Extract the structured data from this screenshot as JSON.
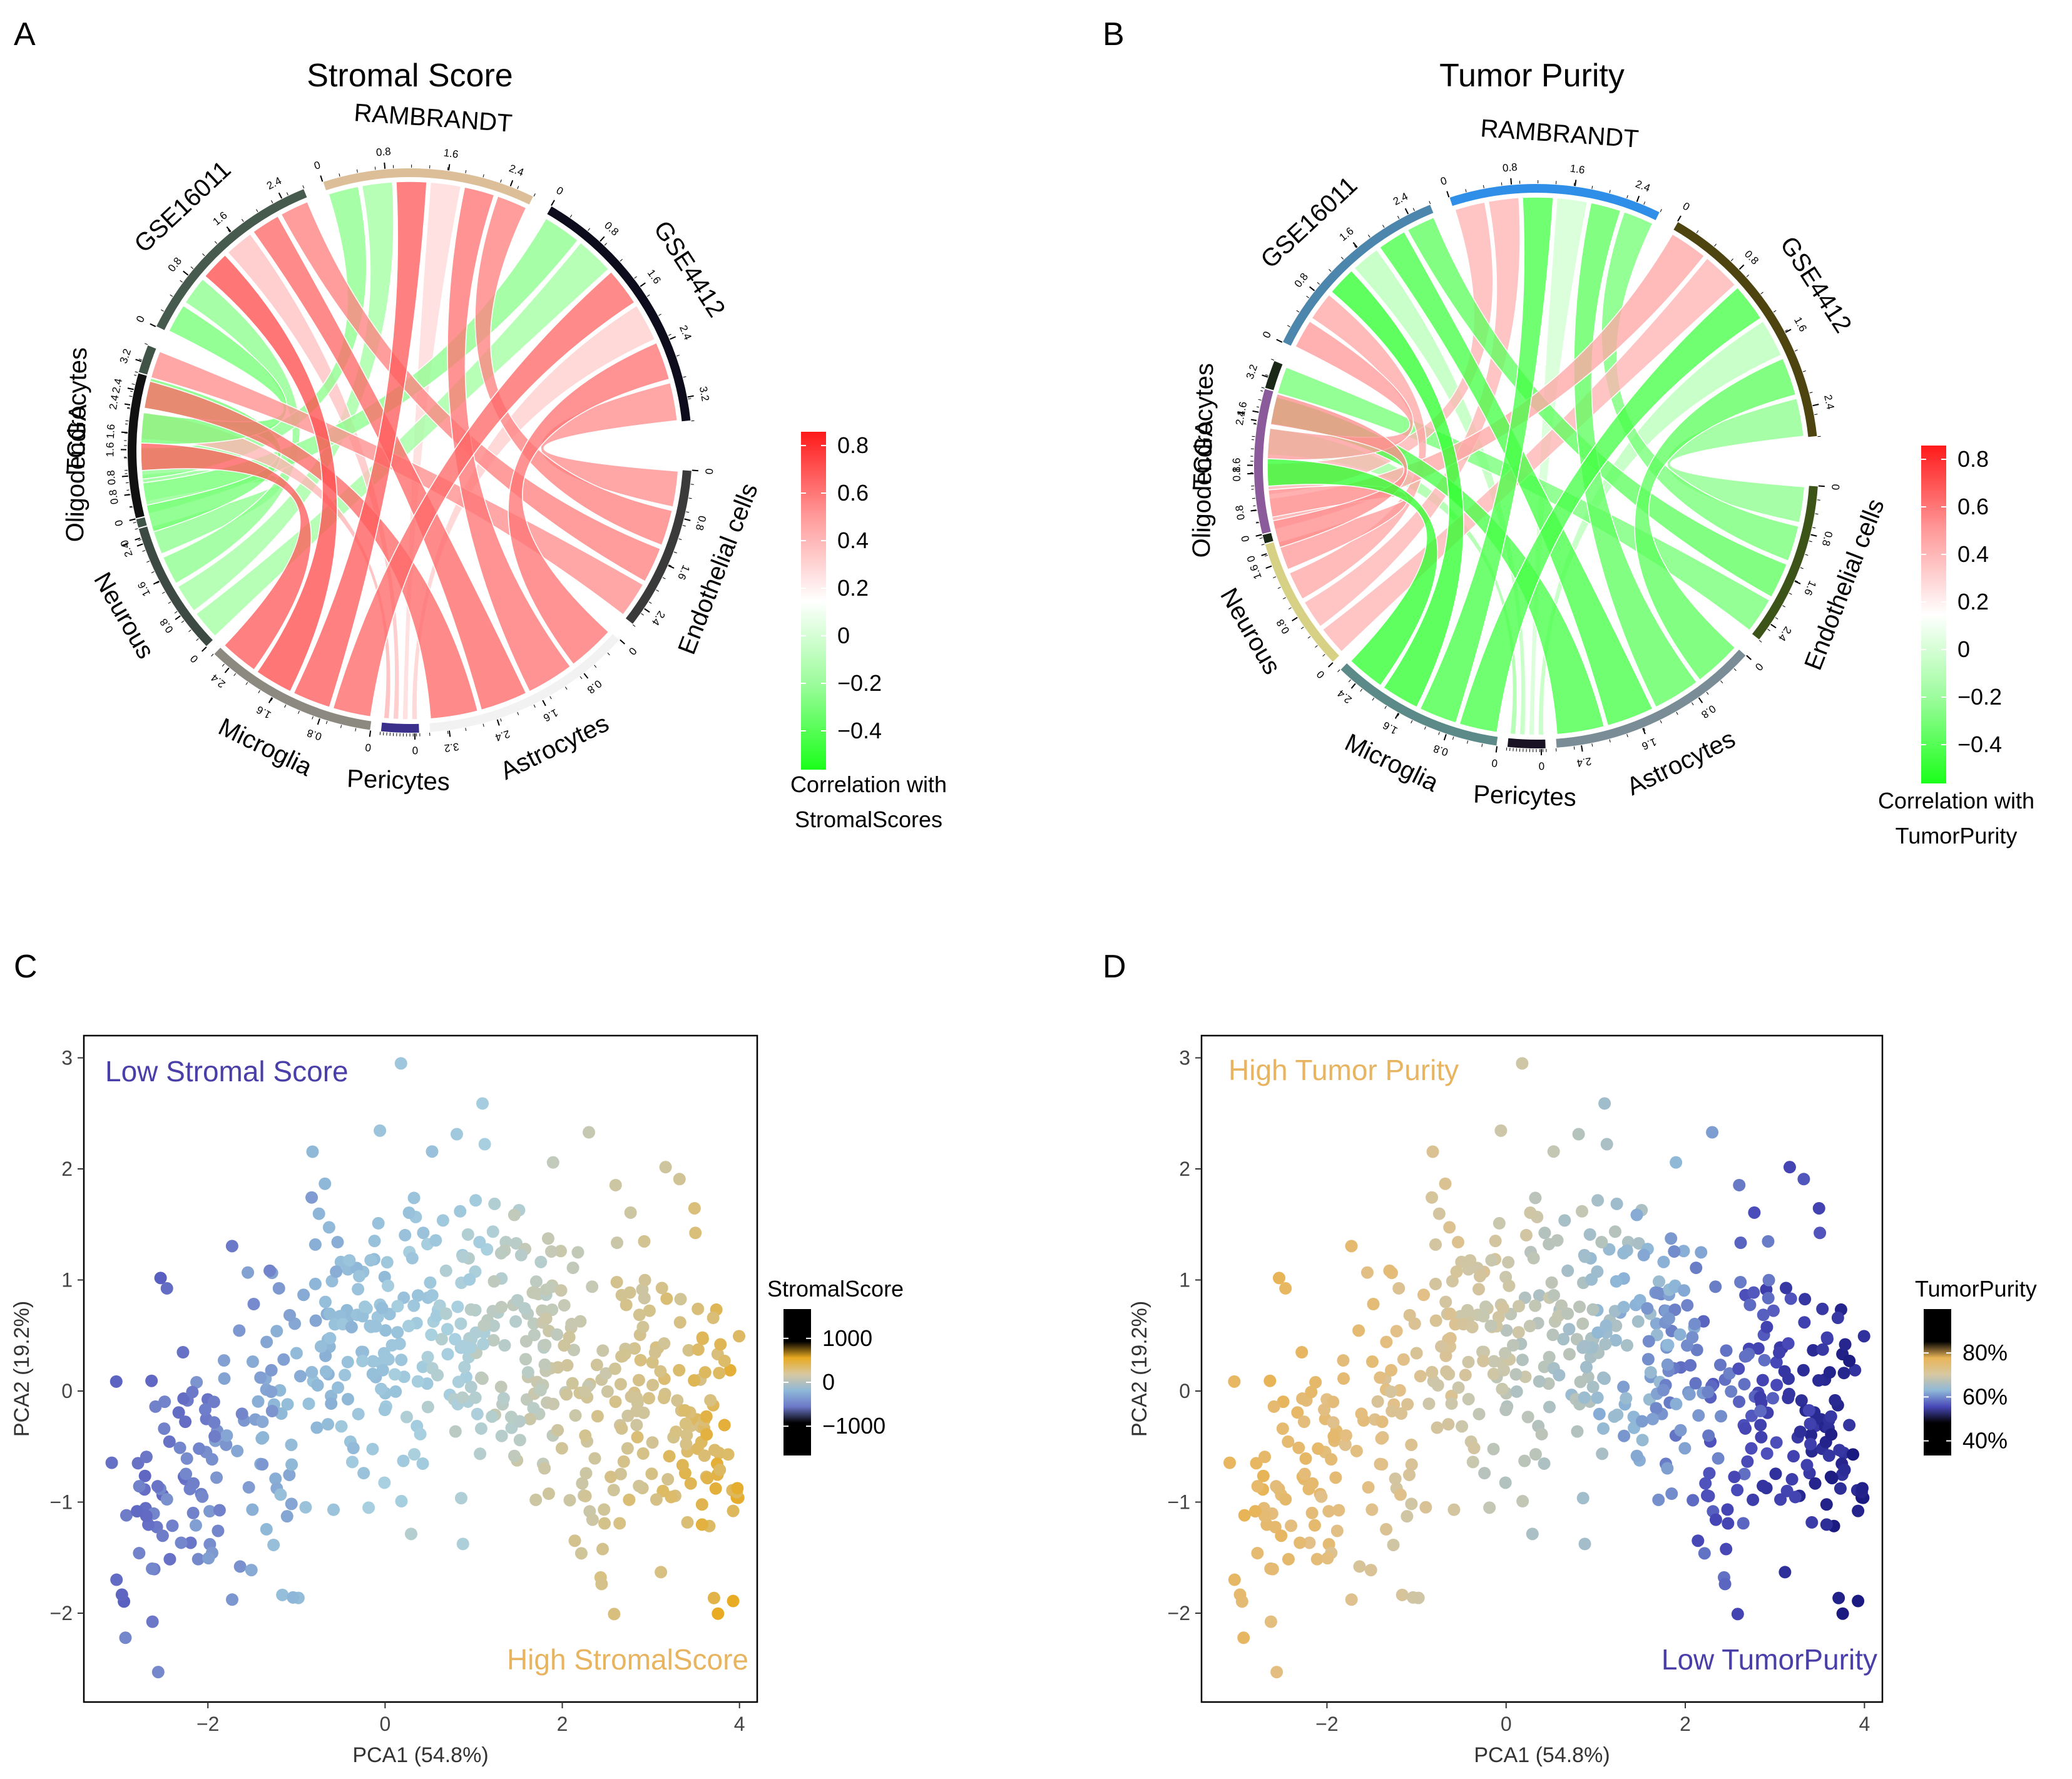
{
  "panels": {
    "A": {
      "letter": "A",
      "title": "Stromal Score",
      "segments": [
        {
          "name": "TCGA",
          "ticks": [
            "0",
            "0.8",
            "1.6",
            "2.4",
            "3.2"
          ],
          "color": "#3f5446"
        },
        {
          "name": "GSE16011",
          "ticks": [
            "0",
            "0.8",
            "1.6",
            "2.4"
          ],
          "color": "#465a4d"
        },
        {
          "name": "RAMBRANDT",
          "ticks": [
            "0",
            "0.8",
            "1.6",
            "2.4"
          ],
          "color": "#dcbf98"
        },
        {
          "name": "GSE4412",
          "ticks": [
            "0",
            "0.8",
            "1.6",
            "2.4",
            "3.2"
          ],
          "color": "#0c0c1c"
        },
        {
          "name": "Endothelial cells",
          "ticks": [
            "0",
            "0.8",
            "1.6",
            "2.4"
          ],
          "color": "#3a3a3a"
        },
        {
          "name": "Astrocytes",
          "ticks": [
            "0",
            "0.8",
            "1.6",
            "2.4",
            "3.2"
          ],
          "color": "#f2f2f2"
        },
        {
          "name": "Pericytes",
          "ticks": [
            "0"
          ],
          "color": "#3a2f8a"
        },
        {
          "name": "Microglia",
          "ticks": [
            "0",
            "0.8",
            "1.6",
            "2.4"
          ],
          "color": "#8c8a80"
        },
        {
          "name": "Neurous",
          "ticks": [
            "0",
            "0.8",
            "1.6",
            "2.4"
          ],
          "color": "#3d4a44"
        },
        {
          "name": "Oligodendrocytes",
          "ticks": [
            "0",
            "0.8",
            "1.6",
            "2.4"
          ],
          "color": "#111111"
        }
      ],
      "legend": {
        "title_line1": "Correlation with",
        "title_line2": "StromalScores",
        "ticks": [
          "0.8",
          "0.6",
          "0.4",
          "0.2",
          "0",
          "−0.2",
          "−0.4"
        ],
        "colors": [
          "#ff1a1a",
          "#ff9a9a",
          "#ffffff",
          "#9afc9a",
          "#1aff1a"
        ]
      }
    },
    "B": {
      "letter": "B",
      "title": "Tumor Purity",
      "segments": [
        {
          "name": "TCGA",
          "ticks": [
            "0",
            "0.8",
            "1.6",
            "2.4",
            "3.2"
          ],
          "color": "#1a2616"
        },
        {
          "name": "GSE16011",
          "ticks": [
            "0",
            "0.8",
            "1.6",
            "2.4"
          ],
          "color": "#4c86ad"
        },
        {
          "name": "RAMBRANDT",
          "ticks": [
            "0",
            "0.8",
            "1.6",
            "2.4"
          ],
          "color": "#2f8fe8"
        },
        {
          "name": "GSE4412",
          "ticks": [
            "0",
            "0.8",
            "1.6",
            "2.4"
          ],
          "color": "#4d4410"
        },
        {
          "name": "Endothelial cells",
          "ticks": [
            "0",
            "0.8",
            "1.6",
            "2.4"
          ],
          "color": "#3d5418"
        },
        {
          "name": "Astrocytes",
          "ticks": [
            "0",
            "0.8",
            "1.6",
            "2.4"
          ],
          "color": "#7a8d96"
        },
        {
          "name": "Pericytes",
          "ticks": [
            "0"
          ],
          "color": "#181224"
        },
        {
          "name": "Microglia",
          "ticks": [
            "0",
            "0.8",
            "1.6",
            "2.4"
          ],
          "color": "#5c8a88"
        },
        {
          "name": "Neurous",
          "ticks": [
            "0",
            "0.8",
            "1.6"
          ],
          "color": "#d6d184"
        },
        {
          "name": "Oligodendrocytes",
          "ticks": [
            "0",
            "0.8",
            "1.6"
          ],
          "color": "#8a5a9a"
        }
      ],
      "legend": {
        "title_line1": "Correlation with",
        "title_line2": "TumorPurity",
        "ticks": [
          "0.8",
          "0.6",
          "0.4",
          "0.2",
          "0",
          "−0.2",
          "−0.4"
        ],
        "colors": [
          "#ff1a1a",
          "#ff9a9a",
          "#ffffff",
          "#9afc9a",
          "#1aff1a"
        ]
      }
    },
    "C": {
      "letter": "C",
      "corner_top_left": "Low Stromal Score",
      "corner_bottom_right": "High StromalScore",
      "corner_tl_color": "#4a3fa8",
      "corner_br_color": "#e8b460",
      "legend_title": "StromalScore",
      "legend_ticks": [
        "1000",
        "0",
        "−1000"
      ]
    },
    "D": {
      "letter": "D",
      "corner_top_left": "High Tumor Purity",
      "corner_bottom_right": "Low TumorPurity",
      "corner_tl_color": "#e8b460",
      "corner_br_color": "#4a3fa8",
      "legend_title": "TumorPurity",
      "legend_ticks": [
        "80%",
        "60%",
        "40%"
      ]
    }
  },
  "chart_data": [
    {
      "type": "chord",
      "panel": "A",
      "title": "Stromal Score",
      "left_sectors": [
        "TCGA",
        "GSE16011",
        "RAMBRANDT",
        "GSE4412"
      ],
      "right_sectors": [
        "Endothelial cells",
        "Astrocytes",
        "Pericytes",
        "Microglia",
        "Neurous",
        "Oligodendrocytes"
      ],
      "color_scale": {
        "min": -0.5,
        "max": 0.85,
        "label": "Correlation with StromalScores"
      },
      "links": [
        {
          "from": "TCGA",
          "to": "Oligodendrocytes",
          "value": -0.3
        },
        {
          "from": "TCGA",
          "to": "Neurous",
          "value": -0.25
        },
        {
          "from": "TCGA",
          "to": "Microglia",
          "value": 0.65
        },
        {
          "from": "TCGA",
          "to": "Pericytes",
          "value": 0.3
        },
        {
          "from": "TCGA",
          "to": "Astrocytes",
          "value": 0.6
        },
        {
          "from": "TCGA",
          "to": "Endothelial cells",
          "value": 0.45
        },
        {
          "from": "GSE16011",
          "to": "Oligodendrocytes",
          "value": -0.3
        },
        {
          "from": "GSE16011",
          "to": "Neurous",
          "value": -0.25
        },
        {
          "from": "GSE16011",
          "to": "Microglia",
          "value": 0.7
        },
        {
          "from": "GSE16011",
          "to": "Pericytes",
          "value": 0.25
        },
        {
          "from": "GSE16011",
          "to": "Astrocytes",
          "value": 0.6
        },
        {
          "from": "GSE16011",
          "to": "Endothelial cells",
          "value": 0.5
        },
        {
          "from": "RAMBRANDT",
          "to": "Oligodendrocytes",
          "value": -0.25
        },
        {
          "from": "RAMBRANDT",
          "to": "Neurous",
          "value": -0.2
        },
        {
          "from": "RAMBRANDT",
          "to": "Microglia",
          "value": 0.65
        },
        {
          "from": "RAMBRANDT",
          "to": "Pericytes",
          "value": 0.15
        },
        {
          "from": "RAMBRANDT",
          "to": "Astrocytes",
          "value": 0.55
        },
        {
          "from": "RAMBRANDT",
          "to": "Endothelial cells",
          "value": 0.5
        },
        {
          "from": "GSE4412",
          "to": "Oligodendrocytes",
          "value": -0.25
        },
        {
          "from": "GSE4412",
          "to": "Neurous",
          "value": -0.2
        },
        {
          "from": "GSE4412",
          "to": "Microglia",
          "value": 0.6
        },
        {
          "from": "GSE4412",
          "to": "Pericytes",
          "value": 0.2
        },
        {
          "from": "GSE4412",
          "to": "Astrocytes",
          "value": 0.55
        },
        {
          "from": "GSE4412",
          "to": "Endothelial cells",
          "value": 0.45
        }
      ]
    },
    {
      "type": "chord",
      "panel": "B",
      "title": "Tumor Purity",
      "left_sectors": [
        "TCGA",
        "GSE16011",
        "RAMBRANDT",
        "GSE4412"
      ],
      "right_sectors": [
        "Endothelial cells",
        "Astrocytes",
        "Pericytes",
        "Microglia",
        "Neurous",
        "Oligodendrocytes"
      ],
      "color_scale": {
        "min": -0.5,
        "max": 0.85,
        "label": "Correlation with TumorPurity"
      },
      "links": [
        {
          "from": "TCGA",
          "to": "Oligodendrocytes",
          "value": 0.45
        },
        {
          "from": "TCGA",
          "to": "Neurous",
          "value": 0.4
        },
        {
          "from": "TCGA",
          "to": "Microglia",
          "value": -0.45
        },
        {
          "from": "TCGA",
          "to": "Pericytes",
          "value": -0.2
        },
        {
          "from": "TCGA",
          "to": "Astrocytes",
          "value": -0.4
        },
        {
          "from": "TCGA",
          "to": "Endothelial cells",
          "value": -0.3
        },
        {
          "from": "GSE16011",
          "to": "Oligodendrocytes",
          "value": 0.4
        },
        {
          "from": "GSE16011",
          "to": "Neurous",
          "value": 0.35
        },
        {
          "from": "GSE16011",
          "to": "Microglia",
          "value": -0.45
        },
        {
          "from": "GSE16011",
          "to": "Pericytes",
          "value": -0.15
        },
        {
          "from": "GSE16011",
          "to": "Astrocytes",
          "value": -0.4
        },
        {
          "from": "GSE16011",
          "to": "Endothelial cells",
          "value": -0.35
        },
        {
          "from": "RAMBRANDT",
          "to": "Oligodendrocytes",
          "value": 0.3
        },
        {
          "from": "RAMBRANDT",
          "to": "Neurous",
          "value": 0.3
        },
        {
          "from": "RAMBRANDT",
          "to": "Microglia",
          "value": -0.4
        },
        {
          "from": "RAMBRANDT",
          "to": "Pericytes",
          "value": -0.1
        },
        {
          "from": "RAMBRANDT",
          "to": "Astrocytes",
          "value": -0.35
        },
        {
          "from": "RAMBRANDT",
          "to": "Endothelial cells",
          "value": -0.3
        },
        {
          "from": "GSE4412",
          "to": "Oligodendrocytes",
          "value": 0.35
        },
        {
          "from": "GSE4412",
          "to": "Neurous",
          "value": 0.3
        },
        {
          "from": "GSE4412",
          "to": "Microglia",
          "value": -0.4
        },
        {
          "from": "GSE4412",
          "to": "Pericytes",
          "value": -0.15
        },
        {
          "from": "GSE4412",
          "to": "Astrocytes",
          "value": -0.35
        },
        {
          "from": "GSE4412",
          "to": "Endothelial cells",
          "value": -0.25
        }
      ]
    },
    {
      "type": "scatter",
      "panel": "C",
      "xlabel": "PCA1 (54.8%)",
      "ylabel": "PCA2 (19.2%)",
      "xlim": [
        -3.4,
        4.2
      ],
      "ylim": [
        -2.8,
        3.2
      ],
      "xticks": [
        -2,
        0,
        2,
        4
      ],
      "yticks": [
        -2,
        -1,
        0,
        1,
        2,
        3
      ],
      "color_variable": "StromalScore",
      "color_range": [
        -1500,
        1500
      ],
      "n_points": 600,
      "generation": "approximate cloud: x = PCA1, y = PCA2, color increases with PCA1"
    },
    {
      "type": "scatter",
      "panel": "D",
      "xlabel": "PCA1 (54.8%)",
      "ylabel": "PCA2 (19.2%)",
      "xlim": [
        -3.4,
        4.2
      ],
      "ylim": [
        -2.8,
        3.2
      ],
      "xticks": [
        -2,
        0,
        2,
        4
      ],
      "yticks": [
        -2,
        -1,
        0,
        1,
        2,
        3
      ],
      "color_variable": "TumorPurity",
      "color_range": [
        0.35,
        0.95
      ],
      "n_points": 600,
      "generation": "same point cloud as C, color = purity (decreases with PCA1)"
    }
  ]
}
